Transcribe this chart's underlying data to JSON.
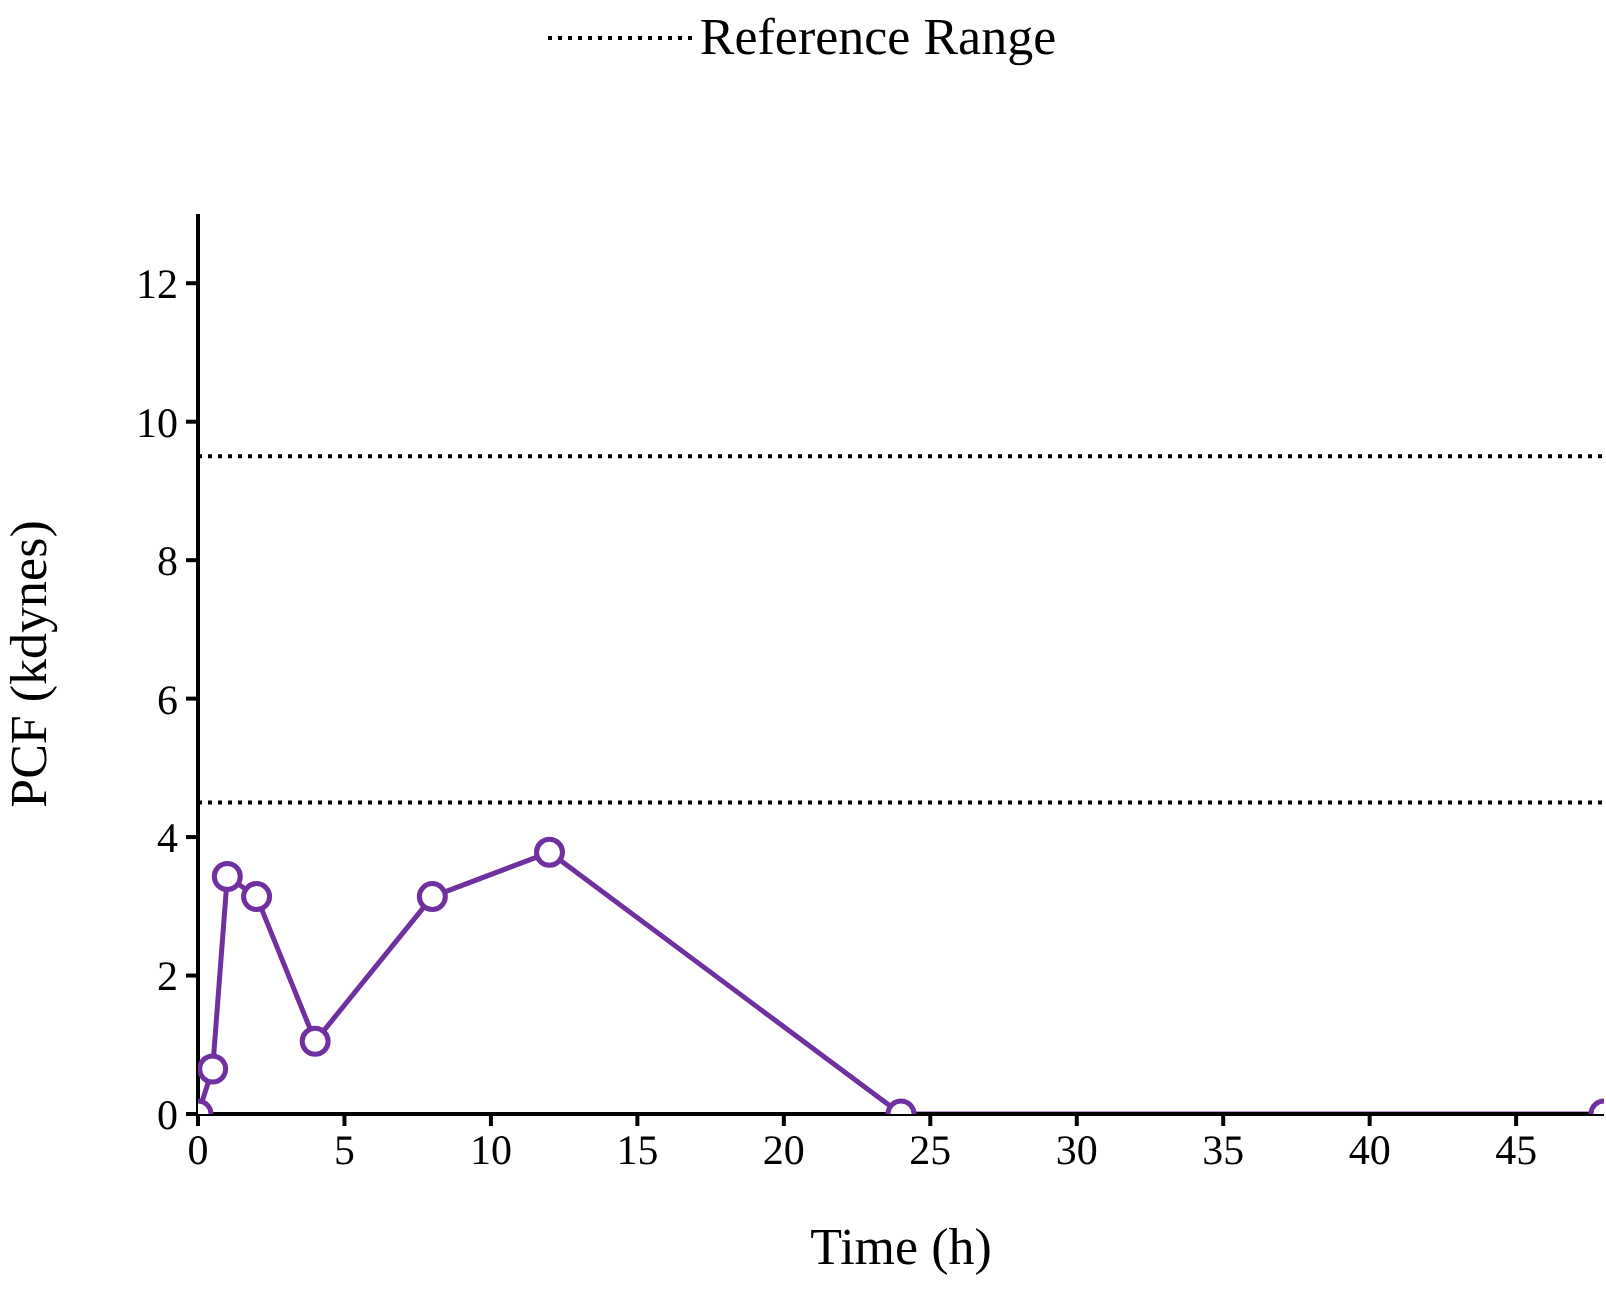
{
  "chart_data": {
    "type": "line",
    "xlabel": "Time (h)",
    "ylabel": "PCF (kdynes)",
    "x": [
      0,
      0.5,
      1,
      2,
      4,
      8,
      12,
      24,
      48
    ],
    "series": [
      {
        "color": "#7030a0",
        "values": [
          0,
          0.65,
          3.43,
          3.14,
          1.05,
          3.14,
          3.78,
          0,
          0
        ]
      }
    ],
    "xlim": [
      0,
      48
    ],
    "xticks": [
      0,
      5,
      10,
      15,
      20,
      25,
      30,
      35,
      40,
      45
    ],
    "ylim": [
      0,
      13
    ],
    "yticks": [
      0,
      2,
      4,
      6,
      8,
      10,
      12
    ],
    "ref_lines": [
      {
        "axis": "y",
        "value": 9.5,
        "label": "Reference Range",
        "color": "#000000",
        "line_style": "dotted"
      },
      {
        "axis": "y",
        "value": 4.5,
        "color": "#000000",
        "line_style": "dotted"
      }
    ],
    "marker": "circle",
    "line_style": "solid",
    "grid": false,
    "legend": "top"
  }
}
